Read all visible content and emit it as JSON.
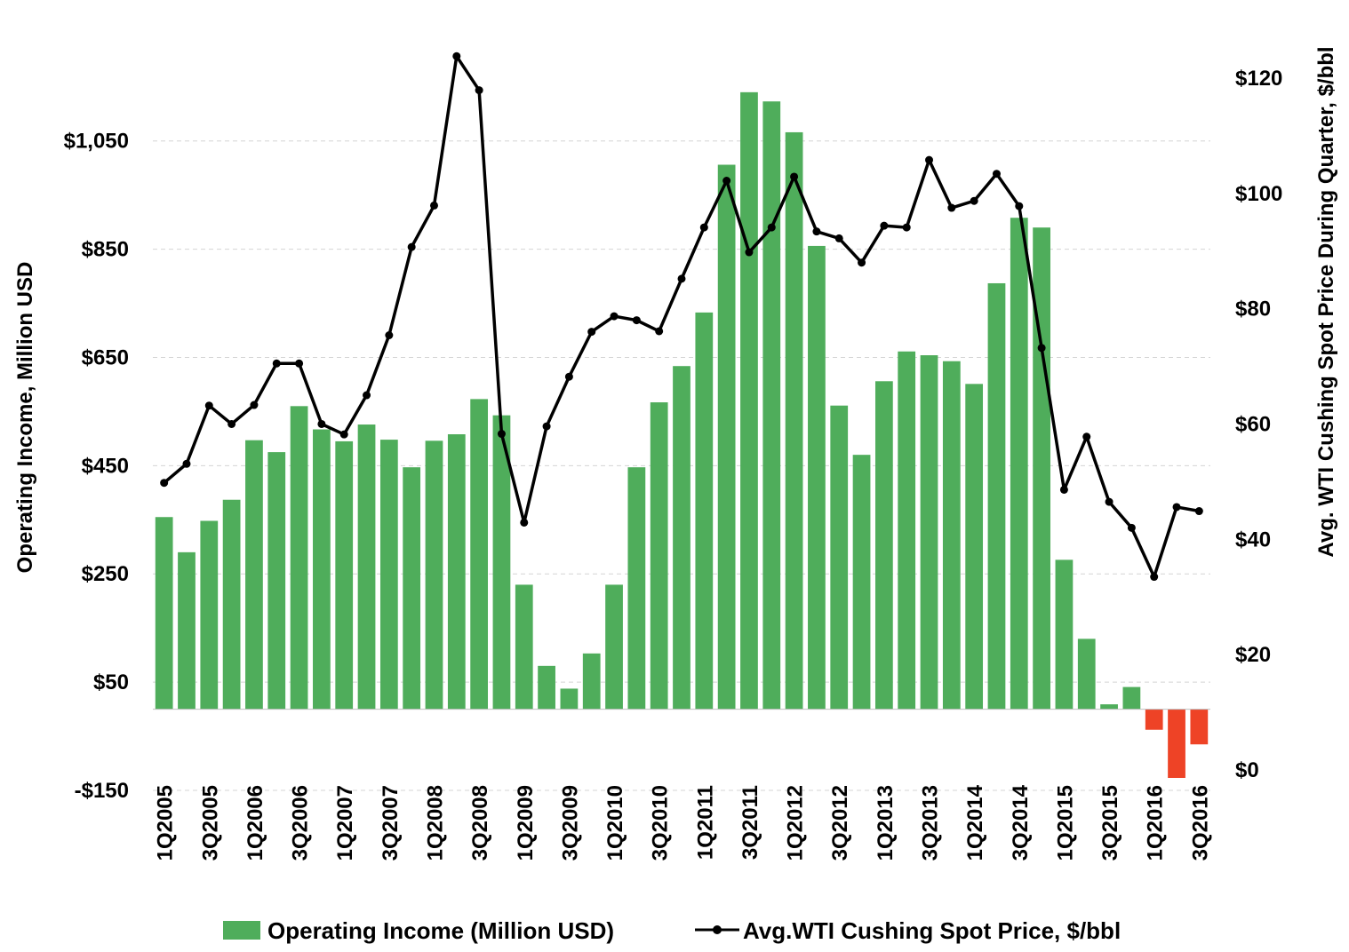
{
  "chart_data": {
    "type": "bar",
    "categories": [
      "1Q2005",
      "2Q2005",
      "3Q2005",
      "4Q2005",
      "1Q2006",
      "2Q2006",
      "3Q2006",
      "4Q2006",
      "1Q2007",
      "2Q2007",
      "3Q2007",
      "4Q2007",
      "1Q2008",
      "2Q2008",
      "3Q2008",
      "4Q2008",
      "1Q2009",
      "2Q2009",
      "3Q2009",
      "4Q2009",
      "1Q2010",
      "2Q2010",
      "3Q2010",
      "4Q2010",
      "1Q2011",
      "2Q2011",
      "3Q2011",
      "4Q2011",
      "1Q2012",
      "2Q2012",
      "3Q2012",
      "4Q2012",
      "1Q2013",
      "2Q2013",
      "3Q2013",
      "4Q2013",
      "1Q2014",
      "2Q2014",
      "3Q2014",
      "4Q2014",
      "1Q2015",
      "2Q2015",
      "3Q2015",
      "4Q2015",
      "1Q2016",
      "2Q2016",
      "3Q2016"
    ],
    "x_tick_labels": [
      "1Q2005",
      "3Q2005",
      "1Q2006",
      "3Q2006",
      "1Q2007",
      "3Q2007",
      "1Q2008",
      "3Q2008",
      "1Q2009",
      "3Q2009",
      "1Q2010",
      "3Q2010",
      "1Q2011",
      "3Q2011",
      "1Q2012",
      "3Q2012",
      "1Q2013",
      "3Q2013",
      "1Q2014",
      "3Q2014",
      "1Q2015",
      "3Q2015",
      "1Q2016",
      "3Q2016"
    ],
    "series": [
      {
        "name": "Operating Income (Million USD)",
        "type": "bar",
        "axis": "left",
        "color": "#4fad5b",
        "negative_color": "#ee4326",
        "values": [
          355,
          290,
          348,
          387,
          497,
          475,
          560,
          517,
          495,
          526,
          498,
          447,
          496,
          508,
          573,
          543,
          230,
          80,
          38,
          103,
          230,
          447,
          567,
          634,
          733,
          1006,
          1140,
          1123,
          1066,
          856,
          561,
          470,
          606,
          661,
          654,
          643,
          601,
          787,
          908,
          890,
          276,
          130,
          9,
          41,
          -38,
          -127,
          -65
        ]
      },
      {
        "name": "Avg.WTI Cushing Spot Price, $/bbl",
        "type": "line",
        "axis": "right",
        "color": "#000000",
        "values": [
          49.8,
          53.1,
          63.2,
          60.0,
          63.3,
          70.5,
          70.5,
          60.0,
          58.2,
          65.0,
          75.4,
          90.7,
          97.9,
          123.8,
          117.9,
          58.3,
          42.9,
          59.6,
          68.2,
          76.0,
          78.7,
          78.0,
          76.1,
          85.2,
          94.1,
          102.2,
          89.8,
          94.1,
          102.9,
          93.4,
          92.2,
          88.0,
          94.4,
          94.1,
          105.8,
          97.5,
          98.7,
          103.4,
          97.8,
          73.2,
          48.6,
          57.8,
          46.5,
          42.0,
          33.5,
          45.6,
          44.9
        ]
      }
    ],
    "y_left": {
      "label": "Operating Income, Million USD",
      "ticks": [
        "-$150",
        "$50",
        "$250",
        "$450",
        "$650",
        "$850",
        "$1,050"
      ],
      "tick_values": [
        -150,
        50,
        250,
        450,
        650,
        850,
        1050
      ],
      "ylim": [
        -150,
        1230
      ]
    },
    "y_right": {
      "label": "Avg. WTI Cushing Spot Price During Quarter, $/bbl",
      "ticks": [
        "$0",
        "$20",
        "$40",
        "$60",
        "$80",
        "$100",
        "$120"
      ],
      "tick_values": [
        0,
        20,
        40,
        60,
        80,
        100,
        120
      ],
      "ylim": [
        0,
        126
      ]
    },
    "grid": true,
    "legend": {
      "position": "bottom",
      "entries": [
        "Operating Income (Million USD)",
        "Avg.WTI Cushing Spot Price, $/bbl"
      ]
    }
  }
}
